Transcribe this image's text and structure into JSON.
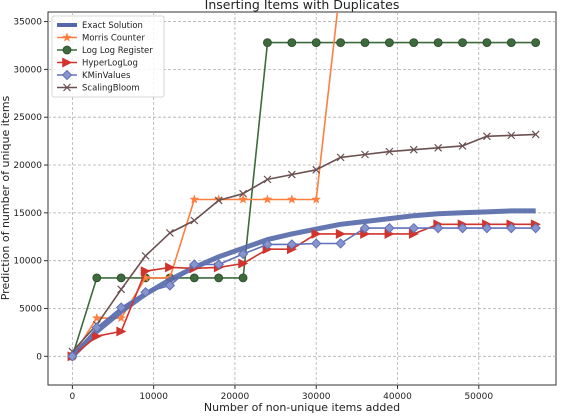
{
  "chart_data": {
    "type": "line",
    "title": "Inserting Items with Duplicates",
    "xlabel": "Number of non-unique items added",
    "ylabel": "Prediction of number of unique items",
    "xlim": [
      -3000,
      59500
    ],
    "ylim": [
      -3000,
      36000
    ],
    "xticks": [
      0,
      10000,
      20000,
      30000,
      40000,
      50000
    ],
    "yticks": [
      0,
      5000,
      10000,
      15000,
      20000,
      25000,
      30000,
      35000
    ],
    "grid": true,
    "legend_position": "top-left",
    "series": [
      {
        "name": "Exact Solution",
        "color": "#5468a8",
        "marker": "none",
        "points": [
          [
            0,
            0
          ],
          [
            3000,
            2600
          ],
          [
            6000,
            4700
          ],
          [
            9000,
            6500
          ],
          [
            12000,
            8000
          ],
          [
            15000,
            9300
          ],
          [
            18000,
            10400
          ],
          [
            21000,
            11300
          ],
          [
            24000,
            12200
          ],
          [
            27000,
            12800
          ],
          [
            30000,
            13300
          ],
          [
            33000,
            13800
          ],
          [
            36000,
            14100
          ],
          [
            39000,
            14400
          ],
          [
            42000,
            14700
          ],
          [
            45000,
            14900
          ],
          [
            48000,
            15000
          ],
          [
            51000,
            15100
          ],
          [
            54000,
            15200
          ],
          [
            57000,
            15200
          ]
        ]
      },
      {
        "name": "Morris Counter",
        "color": "#ff7f3f",
        "marker": "star",
        "points": [
          [
            0,
            0
          ],
          [
            3000,
            4000
          ],
          [
            6000,
            4000
          ],
          [
            9000,
            8200
          ],
          [
            12000,
            8200
          ],
          [
            15000,
            16400
          ],
          [
            18000,
            16400
          ],
          [
            21000,
            16400
          ],
          [
            24000,
            16400
          ],
          [
            27000,
            16400
          ],
          [
            30000,
            16400
          ],
          [
            33000,
            39000
          ]
        ]
      },
      {
        "name": "Log Log Register",
        "color": "#3d6b3d",
        "marker": "circle",
        "points": [
          [
            0,
            0
          ],
          [
            3000,
            8200
          ],
          [
            6000,
            8200
          ],
          [
            9000,
            8200
          ],
          [
            12000,
            8200
          ],
          [
            15000,
            8200
          ],
          [
            18000,
            8200
          ],
          [
            21000,
            8200
          ],
          [
            24000,
            32800
          ],
          [
            27000,
            32800
          ],
          [
            30000,
            32800
          ],
          [
            33000,
            32800
          ],
          [
            36000,
            32800
          ],
          [
            39000,
            32800
          ],
          [
            42000,
            32800
          ],
          [
            45000,
            32800
          ],
          [
            48000,
            32800
          ],
          [
            51000,
            32800
          ],
          [
            54000,
            32800
          ],
          [
            57000,
            32800
          ]
        ]
      },
      {
        "name": "HyperLogLog",
        "color": "#d0342c",
        "marker": "triangle-right",
        "points": [
          [
            0,
            0
          ],
          [
            3000,
            2100
          ],
          [
            6000,
            2600
          ],
          [
            9000,
            8900
          ],
          [
            12000,
            9300
          ],
          [
            15000,
            9200
          ],
          [
            18000,
            9300
          ],
          [
            21000,
            9700
          ],
          [
            24000,
            11200
          ],
          [
            27000,
            11200
          ],
          [
            30000,
            12800
          ],
          [
            33000,
            12800
          ],
          [
            36000,
            12800
          ],
          [
            39000,
            12800
          ],
          [
            42000,
            12800
          ],
          [
            45000,
            13800
          ],
          [
            48000,
            13800
          ],
          [
            51000,
            13800
          ],
          [
            54000,
            13800
          ],
          [
            57000,
            13800
          ]
        ]
      },
      {
        "name": "KMinValues",
        "color": "#6070b8",
        "marker": "diamond",
        "points": [
          [
            0,
            0
          ],
          [
            3000,
            3000
          ],
          [
            6000,
            5100
          ],
          [
            9000,
            6700
          ],
          [
            12000,
            7400
          ],
          [
            15000,
            9600
          ],
          [
            18000,
            9600
          ],
          [
            21000,
            10700
          ],
          [
            24000,
            11700
          ],
          [
            27000,
            11700
          ],
          [
            30000,
            11800
          ],
          [
            33000,
            11800
          ],
          [
            36000,
            13400
          ],
          [
            39000,
            13400
          ],
          [
            42000,
            13400
          ],
          [
            45000,
            13400
          ],
          [
            48000,
            13400
          ],
          [
            51000,
            13400
          ],
          [
            54000,
            13400
          ],
          [
            57000,
            13400
          ]
        ]
      },
      {
        "name": "ScalingBloom",
        "color": "#6b5050",
        "marker": "x",
        "points": [
          [
            0,
            500
          ],
          [
            3000,
            3300
          ],
          [
            6000,
            7000
          ],
          [
            9000,
            10500
          ],
          [
            12000,
            12900
          ],
          [
            15000,
            14200
          ],
          [
            18000,
            16300
          ],
          [
            21000,
            17000
          ],
          [
            24000,
            18500
          ],
          [
            27000,
            19000
          ],
          [
            30000,
            19500
          ],
          [
            33000,
            20800
          ],
          [
            36000,
            21100
          ],
          [
            39000,
            21400
          ],
          [
            42000,
            21600
          ],
          [
            45000,
            21800
          ],
          [
            48000,
            22000
          ],
          [
            51000,
            23000
          ],
          [
            54000,
            23100
          ],
          [
            57000,
            23200
          ]
        ]
      }
    ]
  }
}
